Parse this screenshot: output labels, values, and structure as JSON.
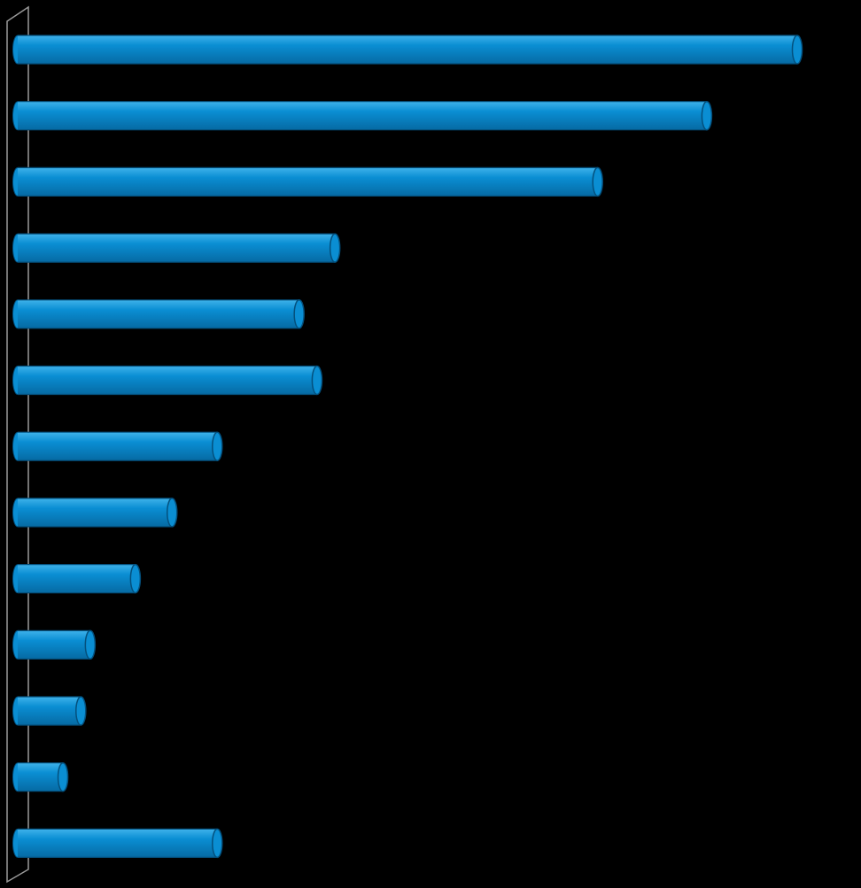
{
  "chart_data": {
    "type": "bar",
    "orientation": "horizontal",
    "style": "3d-cylinder",
    "categories": [
      "",
      "",
      "",
      "",
      "",
      "",
      "",
      "",
      "",
      "",
      "",
      "",
      ""
    ],
    "values": [
      100,
      88.4,
      74.4,
      40.7,
      36.1,
      38.4,
      25.6,
      19.8,
      15.1,
      9.3,
      8.1,
      5.8,
      25.6
    ],
    "xlim": [
      0,
      100
    ],
    "grid": false,
    "legend": "none",
    "title": "",
    "xlabel": "",
    "ylabel": ""
  },
  "colors": {
    "background": "#000000",
    "bar_fill": "#0a8ed3",
    "bar_highlight": "#3fb2ea",
    "bar_shade": "#066aa3",
    "bar_edge": "#04507d",
    "axis_wall": "#9a9a9a"
  }
}
